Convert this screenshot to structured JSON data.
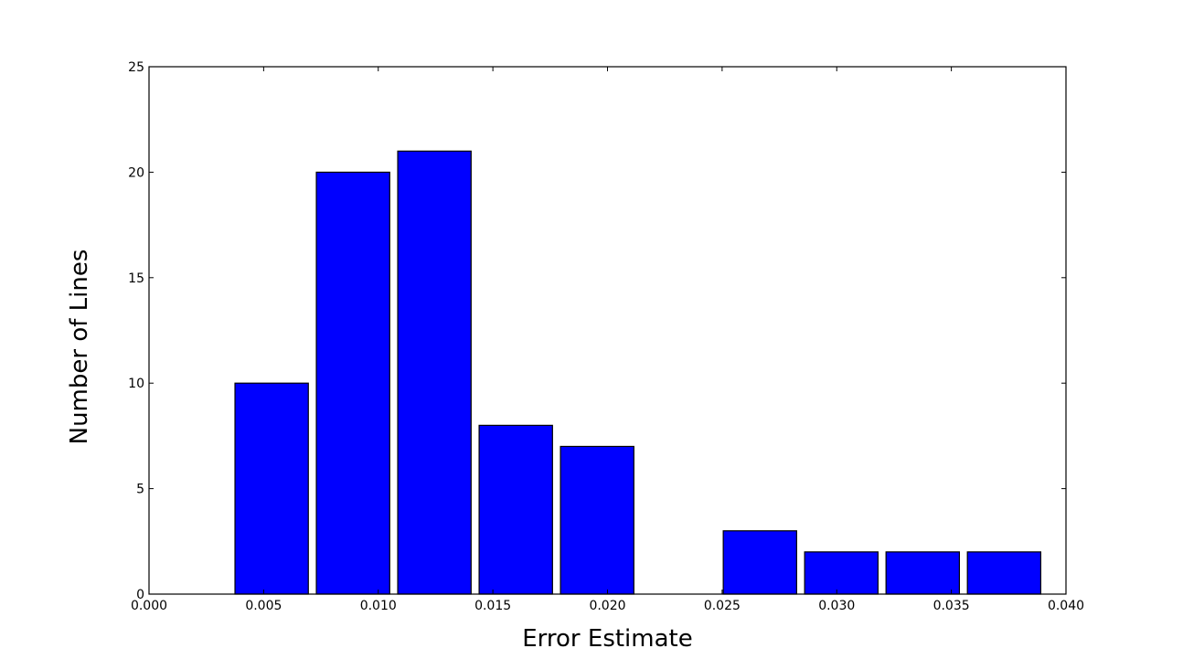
{
  "chart_data": {
    "type": "bar",
    "xlabel": "Error Estimate",
    "ylabel": "Number of Lines",
    "xlim": [
      0.0,
      0.04
    ],
    "ylim": [
      0,
      25
    ],
    "bar_color": "#0000ff",
    "edge_color": "#000000",
    "bars": [
      {
        "x0": 0.00375,
        "x1": 0.00695,
        "value": 10
      },
      {
        "x0": 0.0073,
        "x1": 0.0105,
        "value": 20
      },
      {
        "x0": 0.01085,
        "x1": 0.01405,
        "value": 21
      },
      {
        "x0": 0.0144,
        "x1": 0.0176,
        "value": 8
      },
      {
        "x0": 0.01795,
        "x1": 0.02115,
        "value": 7
      },
      {
        "x0": 0.02505,
        "x1": 0.02825,
        "value": 3
      },
      {
        "x0": 0.0286,
        "x1": 0.0318,
        "value": 2
      },
      {
        "x0": 0.03215,
        "x1": 0.03535,
        "value": 2
      },
      {
        "x0": 0.0357,
        "x1": 0.0389,
        "value": 2
      }
    ],
    "xticks": [
      {
        "value": 0.0,
        "label": "0.000"
      },
      {
        "value": 0.005,
        "label": "0.005"
      },
      {
        "value": 0.01,
        "label": "0.010"
      },
      {
        "value": 0.015,
        "label": "0.015"
      },
      {
        "value": 0.02,
        "label": "0.020"
      },
      {
        "value": 0.025,
        "label": "0.025"
      },
      {
        "value": 0.03,
        "label": "0.030"
      },
      {
        "value": 0.035,
        "label": "0.035"
      },
      {
        "value": 0.04,
        "label": "0.040"
      }
    ],
    "yticks": [
      {
        "value": 0,
        "label": "0"
      },
      {
        "value": 5,
        "label": "5"
      },
      {
        "value": 10,
        "label": "10"
      },
      {
        "value": 15,
        "label": "15"
      },
      {
        "value": 20,
        "label": "20"
      },
      {
        "value": 25,
        "label": "25"
      }
    ],
    "grid": false
  }
}
